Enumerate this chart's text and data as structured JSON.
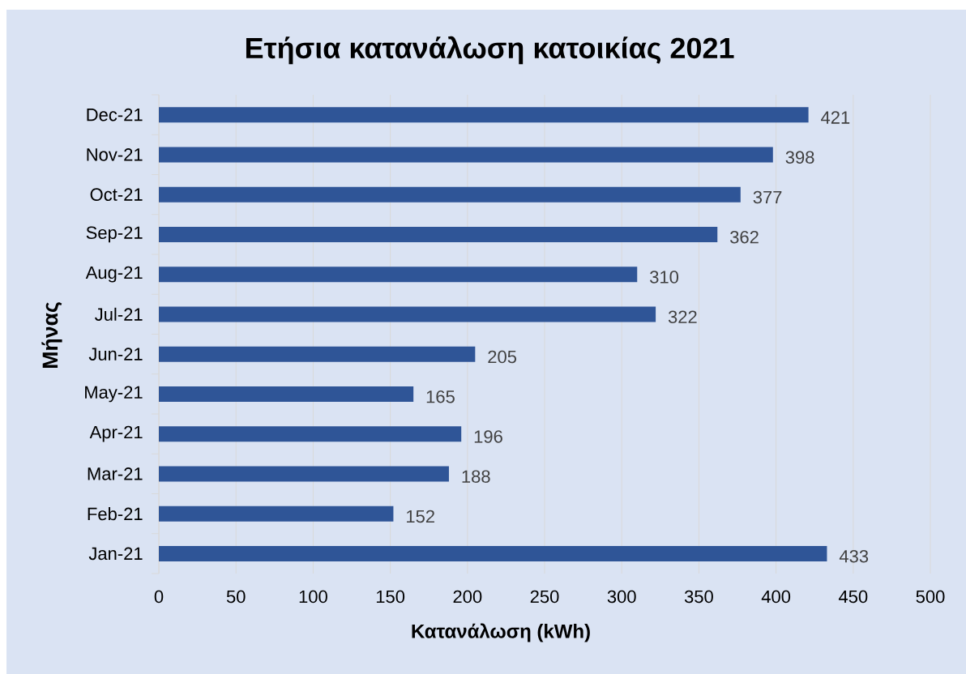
{
  "chart_data": {
    "type": "bar",
    "orientation": "horizontal",
    "title": "Ετήσια κατανάλωση κατοικίας 2021",
    "xlabel": "Κατανάλωση (kWh)",
    "ylabel": "Μήνας",
    "categories": [
      "Dec-21",
      "Nov-21",
      "Oct-21",
      "Sep-21",
      "Aug-21",
      "Jul-21",
      "Jun-21",
      "May-21",
      "Apr-21",
      "Mar-21",
      "Feb-21",
      "Jan-21"
    ],
    "values": [
      421,
      398,
      377,
      362,
      310,
      322,
      205,
      165,
      196,
      188,
      152,
      433
    ],
    "color": "#2f5597",
    "xlim": [
      0,
      500
    ],
    "xticks": [
      0,
      50,
      100,
      150,
      200,
      250,
      300,
      350,
      400,
      450,
      500
    ],
    "grid": "x",
    "data_labels": true
  }
}
